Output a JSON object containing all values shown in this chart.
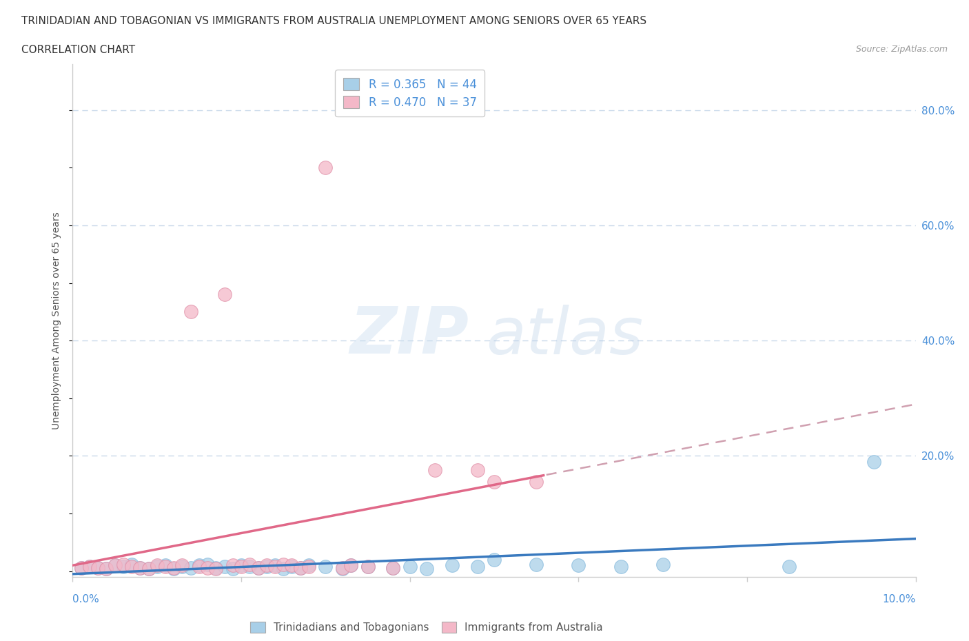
{
  "title_line1": "TRINIDADIAN AND TOBAGONIAN VS IMMIGRANTS FROM AUSTRALIA UNEMPLOYMENT AMONG SENIORS OVER 65 YEARS",
  "title_line2": "CORRELATION CHART",
  "source_text": "Source: ZipAtlas.com",
  "ylabel": "Unemployment Among Seniors over 65 years",
  "right_yticks": [
    "80.0%",
    "60.0%",
    "40.0%",
    "20.0%"
  ],
  "right_ytick_vals": [
    0.8,
    0.6,
    0.4,
    0.2
  ],
  "watermark_zip": "ZIP",
  "watermark_atlas": "atlas",
  "legend_blue_R": "0.365",
  "legend_blue_N": "44",
  "legend_pink_R": "0.470",
  "legend_pink_N": "37",
  "legend_label_blue": "Trinidadians and Tobagonians",
  "legend_label_pink": "Immigrants from Australia",
  "blue_color": "#a8cfe8",
  "pink_color": "#f4b8c8",
  "trendline_blue_color": "#3a7abf",
  "trendline_pink_color": "#e06888",
  "trendline_ext_color": "#d0a0b0",
  "blue_scatter_x": [
    0.001,
    0.002,
    0.003,
    0.004,
    0.005,
    0.006,
    0.007,
    0.008,
    0.009,
    0.01,
    0.011,
    0.012,
    0.013,
    0.014,
    0.015,
    0.016,
    0.017,
    0.018,
    0.019,
    0.02,
    0.021,
    0.022,
    0.023,
    0.024,
    0.025,
    0.026,
    0.027,
    0.028,
    0.03,
    0.032,
    0.033,
    0.035,
    0.038,
    0.04,
    0.042,
    0.045,
    0.048,
    0.05,
    0.055,
    0.06,
    0.065,
    0.07,
    0.085,
    0.095
  ],
  "blue_scatter_y": [
    0.005,
    0.008,
    0.006,
    0.004,
    0.01,
    0.008,
    0.012,
    0.006,
    0.004,
    0.008,
    0.01,
    0.004,
    0.008,
    0.006,
    0.01,
    0.012,
    0.006,
    0.008,
    0.004,
    0.01,
    0.008,
    0.006,
    0.008,
    0.01,
    0.004,
    0.008,
    0.006,
    0.01,
    0.008,
    0.004,
    0.01,
    0.008,
    0.006,
    0.008,
    0.004,
    0.01,
    0.008,
    0.02,
    0.012,
    0.01,
    0.008,
    0.012,
    0.008,
    0.19
  ],
  "pink_scatter_x": [
    0.001,
    0.002,
    0.003,
    0.004,
    0.005,
    0.006,
    0.007,
    0.008,
    0.009,
    0.01,
    0.011,
    0.012,
    0.013,
    0.014,
    0.015,
    0.016,
    0.017,
    0.018,
    0.019,
    0.02,
    0.021,
    0.022,
    0.023,
    0.024,
    0.025,
    0.026,
    0.027,
    0.028,
    0.03,
    0.032,
    0.033,
    0.035,
    0.038,
    0.043,
    0.048,
    0.05,
    0.055
  ],
  "pink_scatter_y": [
    0.005,
    0.008,
    0.006,
    0.004,
    0.01,
    0.012,
    0.008,
    0.006,
    0.004,
    0.01,
    0.008,
    0.006,
    0.01,
    0.45,
    0.008,
    0.006,
    0.004,
    0.48,
    0.01,
    0.008,
    0.012,
    0.006,
    0.01,
    0.008,
    0.012,
    0.01,
    0.006,
    0.008,
    0.7,
    0.006,
    0.01,
    0.008,
    0.006,
    0.175,
    0.175,
    0.155,
    0.155
  ],
  "xmin": 0.0,
  "xmax": 0.1,
  "ymin": -0.01,
  "ymax": 0.88,
  "grid_color": "#c8d8ea",
  "background_color": "#ffffff",
  "title_fontsize": 11,
  "axis_color": "#4a90d9",
  "tick_label_color": "#4a90d9",
  "spine_color": "#cccccc"
}
